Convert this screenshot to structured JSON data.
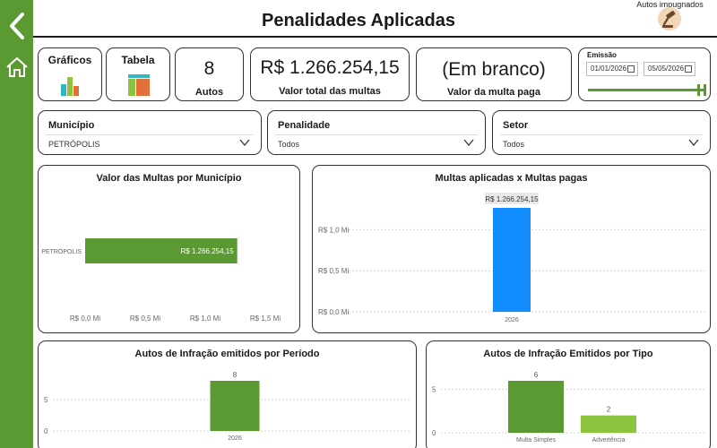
{
  "header": {
    "title": "Penalidades Aplicadas",
    "autos_impugnados_label": "Autos impugnados"
  },
  "tiles": {
    "graficos": "Gráficos",
    "tabela": "Tabela"
  },
  "kpis": {
    "autos_value": "8",
    "autos_label": "Autos",
    "valor_total_value": "R$ 1.266.254,15",
    "valor_total_label": "Valor total das multas",
    "valor_paga_value": "(Em branco)",
    "valor_paga_label": "Valor da multa paga"
  },
  "emissao": {
    "label": "Emissão",
    "start_date": "01/01/2026",
    "end_date": "05/05/2026",
    "slider_fraction": 1.0
  },
  "filters": {
    "municipio": {
      "label": "Município",
      "value": "PETRÓPOLIS"
    },
    "penalidade": {
      "label": "Penalidade",
      "value": "Todos"
    },
    "setor": {
      "label": "Setor",
      "value": "Todos"
    }
  },
  "colors": {
    "green": "#5b9a32",
    "light_green": "#8cc43f",
    "blue": "#118dff"
  },
  "chart_data": [
    {
      "type": "bar",
      "orientation": "horizontal",
      "title": "Valor das Multas por Município",
      "categories": [
        "PETRÓPOLIS"
      ],
      "values": [
        1266254.15
      ],
      "data_labels": [
        "R$ 1.266.254,15"
      ],
      "xlim": [
        0,
        1500000
      ],
      "ticks": [
        0,
        500000,
        1000000,
        1500000
      ],
      "tick_labels": [
        "R$ 0,0 Mi",
        "R$ 0,5 Mi",
        "R$ 1,0 Mi",
        "R$ 1,5 Mi"
      ]
    },
    {
      "type": "bar",
      "title": "Multas aplicadas x Multas pagas",
      "categories": [
        "2026"
      ],
      "values": [
        1266254.15
      ],
      "data_labels": [
        "R$ 1.266.254,15"
      ],
      "ylim": [
        0,
        1266254.15
      ],
      "ticks": [
        0,
        500000,
        1000000
      ],
      "tick_labels": [
        "R$ 0,0 Mi",
        "R$ 0,5 Mi",
        "R$ 1,0 Mi"
      ],
      "grid": true
    },
    {
      "type": "bar",
      "title": "Autos de Infração emitidos por Período",
      "categories": [
        "2026"
      ],
      "values": [
        8
      ],
      "data_labels": [
        "8"
      ],
      "ylim": [
        0,
        8
      ],
      "ticks": [
        0,
        5
      ],
      "tick_labels": [
        "0",
        "5"
      ],
      "grid": true
    },
    {
      "type": "bar",
      "title": "Autos de Infração Emitidos por Tipo",
      "categories": [
        "Multa Simples",
        "Advertência"
      ],
      "values": [
        6,
        2
      ],
      "data_labels": [
        "6",
        "2"
      ],
      "ylim": [
        0,
        6
      ],
      "ticks": [
        0,
        5
      ],
      "tick_labels": [
        "0",
        "5"
      ],
      "grid": true
    }
  ]
}
